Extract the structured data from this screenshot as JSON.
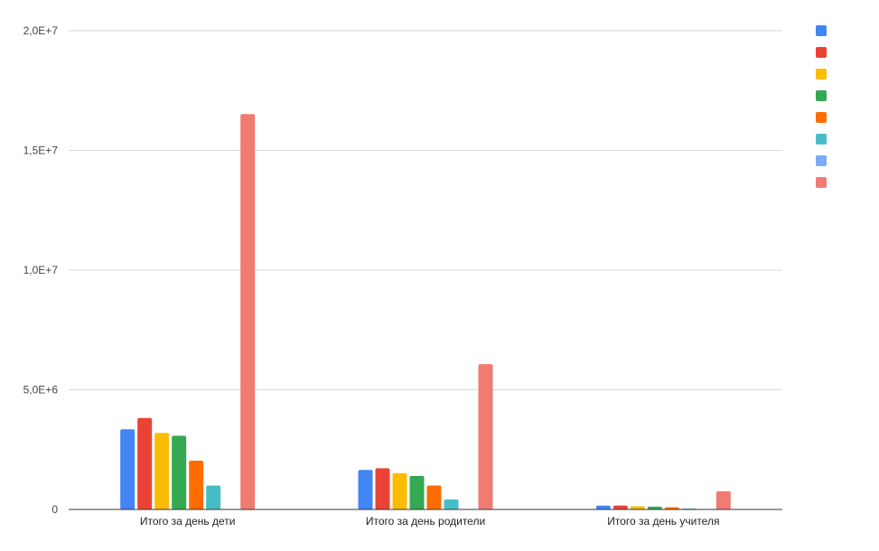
{
  "chart_data": {
    "type": "bar",
    "categories": [
      "Итого за день дети",
      "Итого за день родители",
      "Итого за день учителя"
    ],
    "y_ticks": [
      "0",
      "5,0E+6",
      "1,0E+7",
      "1,5E+7",
      "2,0E+7"
    ],
    "ylim": [
      0,
      20000000
    ],
    "grid": true,
    "legend_position": "right",
    "series": [
      {
        "color": "#4285f4",
        "values": [
          3350000,
          1650000,
          160000
        ]
      },
      {
        "color": "#ea4335",
        "values": [
          3820000,
          1720000,
          165000
        ]
      },
      {
        "color": "#fbbc04",
        "values": [
          3200000,
          1520000,
          130000
        ]
      },
      {
        "color": "#34a853",
        "values": [
          3080000,
          1400000,
          120000
        ]
      },
      {
        "color": "#ff6d01",
        "values": [
          2040000,
          1000000,
          90000
        ]
      },
      {
        "color": "#46bdc6",
        "values": [
          1000000,
          420000,
          40000
        ]
      },
      {
        "color": "#7baaf7",
        "values": [
          0,
          0,
          0
        ]
      },
      {
        "color": "#f07b72",
        "values": [
          16520000,
          6070000,
          760000
        ]
      }
    ]
  }
}
